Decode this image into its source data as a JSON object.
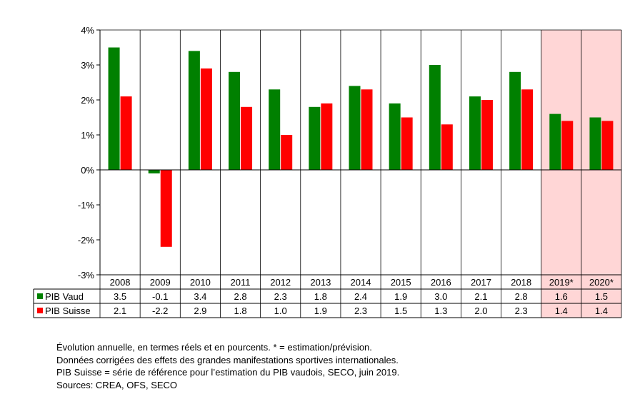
{
  "chart_data": {
    "type": "bar",
    "categories": [
      "2008",
      "2009",
      "2010",
      "2011",
      "2012",
      "2013",
      "2014",
      "2015",
      "2016",
      "2017",
      "2018",
      "2019*",
      "2020*"
    ],
    "highlighted_categories": [
      "2019*",
      "2020*"
    ],
    "series": [
      {
        "name": "PIB Vaud",
        "color": "#008000",
        "values": [
          3.5,
          -0.1,
          3.4,
          2.8,
          2.3,
          1.8,
          2.4,
          1.9,
          3.0,
          2.1,
          2.8,
          1.6,
          1.5
        ]
      },
      {
        "name": "PIB Suisse",
        "color": "#ff0000",
        "values": [
          2.1,
          -2.2,
          2.9,
          1.8,
          1.0,
          1.9,
          2.3,
          1.5,
          1.3,
          2.0,
          2.3,
          1.4,
          1.4
        ]
      }
    ],
    "table_values": [
      [
        "3.5",
        "-0.1",
        "3.4",
        "2.8",
        "2.3",
        "1.8",
        "2.4",
        "1.9",
        "3.0",
        "2.1",
        "2.8",
        "1.6",
        "1.5"
      ],
      [
        "2.1",
        "-2.2",
        "2.9",
        "1.8",
        "1.0",
        "1.9",
        "2.3",
        "1.5",
        "1.3",
        "2.0",
        "2.3",
        "1.4",
        "1.4"
      ]
    ],
    "ylim": [
      -3,
      4
    ],
    "yticks": [
      4,
      3,
      2,
      1,
      0,
      -1,
      -2,
      -3
    ],
    "ytick_labels": [
      "4%",
      "3%",
      "2%",
      "1%",
      "0%",
      "-1%",
      "-2%",
      "-3%"
    ],
    "grid": true,
    "legend_placement": "data-table-left",
    "highlight_color": "#ffd6d6"
  },
  "notes": [
    "Évolution annuelle, en termes réels et en pourcents. * = estimation/prévision.",
    "Données corrigées des effets des grandes manifestations sportives internationales.",
    "PIB Suisse = série de référence pour l’estimation du PIB vaudois, SECO, juin 2019.",
    "Sources: CREA, OFS, SECO"
  ]
}
